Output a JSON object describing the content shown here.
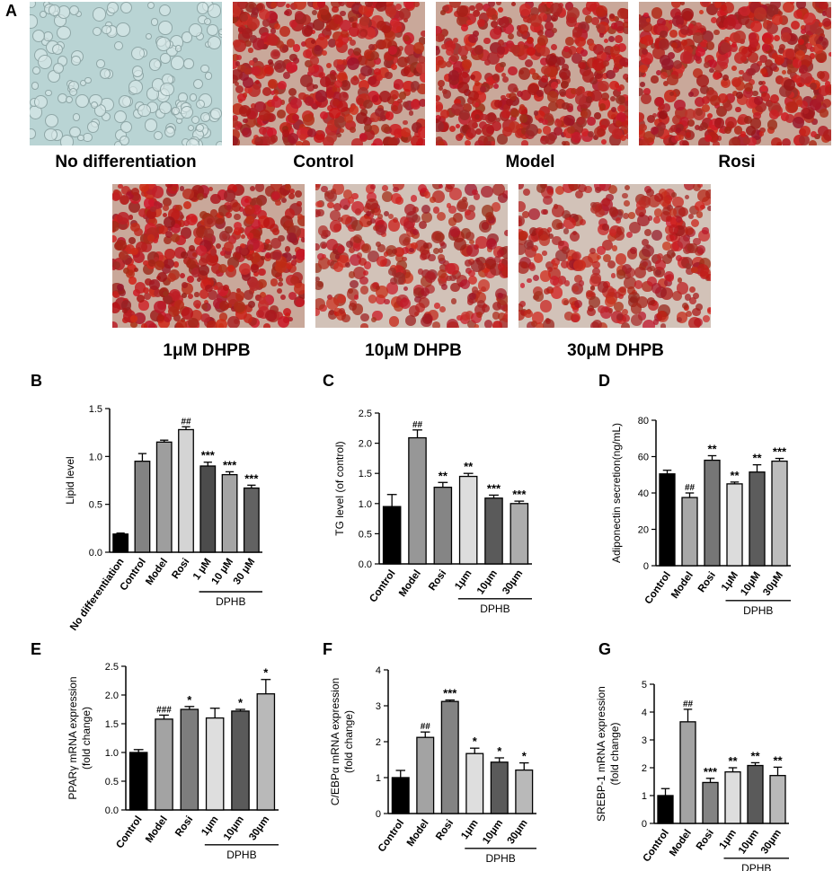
{
  "panel_labels": {
    "a": "A",
    "b": "B",
    "c": "C",
    "d": "D",
    "e": "E",
    "f": "F",
    "g": "G"
  },
  "images": [
    {
      "caption": "No differentiation",
      "stain": "light"
    },
    {
      "caption": "Control",
      "stain": "heavy"
    },
    {
      "caption": "Model",
      "stain": "heavy"
    },
    {
      "caption": "Rosi",
      "stain": "heavy"
    },
    {
      "caption": "1μM DHPB",
      "stain": "heavy"
    },
    {
      "caption": "10μM DHPB",
      "stain": "medium"
    },
    {
      "caption": "30μM DHPB",
      "stain": "medium"
    }
  ],
  "chart_data": [
    {
      "panel": "B",
      "type": "bar",
      "ylabel": "Lipid level",
      "ylim": [
        0,
        1.5
      ],
      "yticks": [
        0.0,
        0.5,
        1.0,
        1.5
      ],
      "categories": [
        "No differentiation",
        "Control",
        "Model",
        "Rosi",
        "1 μM",
        "10 μM",
        "30 μM"
      ],
      "values": [
        0.19,
        0.95,
        1.15,
        1.28,
        0.9,
        0.81,
        0.67
      ],
      "errors": [
        0.01,
        0.08,
        0.02,
        0.03,
        0.04,
        0.03,
        0.03
      ],
      "annotations": [
        "",
        "",
        "",
        "##",
        "***",
        "***",
        "***"
      ],
      "colors": [
        "#000000",
        "#838383",
        "#9e9e9e",
        "#d4d4d4",
        "#4c4c4c",
        "#a5a5a5",
        "#626262"
      ],
      "group_label": "DPHB",
      "group_start": 4
    },
    {
      "panel": "C",
      "type": "bar",
      "ylabel": "TG level (of control)",
      "ylim": [
        0,
        2.5
      ],
      "yticks": [
        0.0,
        0.5,
        1.0,
        1.5,
        2.0,
        2.5
      ],
      "categories": [
        "Control",
        "Model",
        "Rosi",
        "1μm",
        "10μm",
        "30μm"
      ],
      "values": [
        0.95,
        2.09,
        1.27,
        1.45,
        1.09,
        1.0
      ],
      "errors": [
        0.2,
        0.13,
        0.08,
        0.05,
        0.05,
        0.04
      ],
      "annotations": [
        "",
        "##",
        "**",
        "**",
        "***",
        "***"
      ],
      "colors": [
        "#000000",
        "#979797",
        "#858585",
        "#dddddd",
        "#5a5a5a",
        "#adadad"
      ],
      "group_label": "DPHB",
      "group_start": 3
    },
    {
      "panel": "D",
      "type": "bar",
      "ylabel": "Adiponectin secretion(ng/mL)",
      "ylim": [
        0,
        80
      ],
      "yticks": [
        0,
        20,
        40,
        60,
        80
      ],
      "categories": [
        "Control",
        "Model",
        "Rosi",
        "1μM",
        "10μM",
        "30μM"
      ],
      "values": [
        50.5,
        37.5,
        58.0,
        45.0,
        51.5,
        57.5
      ],
      "errors": [
        2.0,
        2.5,
        2.5,
        1.0,
        4.0,
        1.5
      ],
      "annotations": [
        "",
        "##",
        "**",
        "**",
        "**",
        "***"
      ],
      "colors": [
        "#000000",
        "#a8a8a8",
        "#767676",
        "#dcdcdc",
        "#5c5c5c",
        "#bdbdbd"
      ],
      "group_label": "DPHB",
      "group_start": 3
    },
    {
      "panel": "E",
      "type": "bar",
      "ylabel": "PPARγ mRNA expression (fold change)",
      "ylabel_lines": [
        "PPARγ mRNA expression",
        "(fold change)"
      ],
      "ylim": [
        0,
        2.5
      ],
      "yticks": [
        0.0,
        0.5,
        1.0,
        1.5,
        2.0,
        2.5
      ],
      "categories": [
        "Control",
        "Model",
        "Rosi",
        "1μm",
        "10μm",
        "30μm"
      ],
      "values": [
        1.0,
        1.58,
        1.75,
        1.6,
        1.72,
        2.02
      ],
      "errors": [
        0.05,
        0.07,
        0.05,
        0.17,
        0.03,
        0.25
      ],
      "annotations": [
        "",
        "###",
        "*",
        "",
        "*",
        "*"
      ],
      "colors": [
        "#000000",
        "#a3a3a3",
        "#7d7d7d",
        "#dedede",
        "#5a5a5a",
        "#b9b9b9"
      ],
      "group_label": "DPHB",
      "group_start": 3
    },
    {
      "panel": "F",
      "type": "bar",
      "ylabel": "C/EBPα mRNA expression (fold change)",
      "ylabel_lines": [
        "C/EBPα mRNA expression",
        "(fold change)"
      ],
      "ylim": [
        0,
        4
      ],
      "yticks": [
        0,
        1,
        2,
        3,
        4
      ],
      "categories": [
        "Control",
        "Model",
        "Rosi",
        "1μm",
        "10μm",
        "30μm"
      ],
      "values": [
        1.0,
        2.12,
        3.12,
        1.67,
        1.43,
        1.21
      ],
      "errors": [
        0.2,
        0.15,
        0.04,
        0.15,
        0.12,
        0.2
      ],
      "annotations": [
        "",
        "##",
        "***",
        "*",
        "*",
        "*"
      ],
      "colors": [
        "#000000",
        "#a3a3a3",
        "#838383",
        "#dedede",
        "#5a5a5a",
        "#b9b9b9"
      ],
      "group_label": "DPHB",
      "group_start": 3
    },
    {
      "panel": "G",
      "type": "bar",
      "ylabel": "SREBP-1 mRNA expression (fold change)",
      "ylabel_lines": [
        "SREBP-1 mRNA expression",
        "(fold change)"
      ],
      "ylim": [
        0,
        5
      ],
      "yticks": [
        0,
        1,
        2,
        3,
        4,
        5
      ],
      "categories": [
        "Control",
        "Model",
        "Rosi",
        "1μm",
        "10μm",
        "30μm"
      ],
      "values": [
        1.0,
        3.65,
        1.47,
        1.85,
        2.08,
        1.72
      ],
      "errors": [
        0.25,
        0.45,
        0.15,
        0.15,
        0.1,
        0.3
      ],
      "annotations": [
        "",
        "##",
        "***",
        "**",
        "**",
        "**"
      ],
      "colors": [
        "#000000",
        "#a3a3a3",
        "#838383",
        "#dedede",
        "#5a5a5a",
        "#b9b9b9"
      ],
      "group_label": "DPHB",
      "group_start": 3
    }
  ]
}
